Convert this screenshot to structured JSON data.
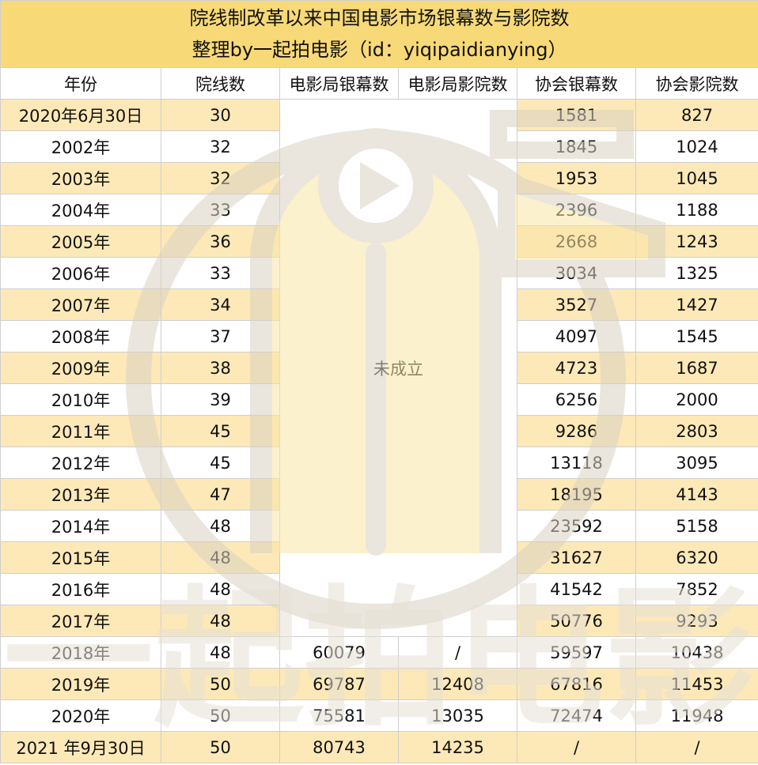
{
  "title": {
    "line1": "院线制改革以来中国电影市场银幕数与影院数",
    "line2": "整理by一起拍电影（id：yiqipaidianying）"
  },
  "columns": [
    "年份",
    "院线数",
    "电影局银幕数",
    "电影局影院数",
    "协会银幕数",
    "协会影院数"
  ],
  "merged_note": "未成立",
  "rows": [
    {
      "year": "2020年6月30日",
      "chains": "30",
      "bureau_screens": "",
      "bureau_cinemas": "",
      "assoc_screens": "1581",
      "assoc_cinemas": "827"
    },
    {
      "year": "2002年",
      "chains": "32",
      "bureau_screens": "",
      "bureau_cinemas": "",
      "assoc_screens": "1845",
      "assoc_cinemas": "1024"
    },
    {
      "year": "2003年",
      "chains": "32",
      "bureau_screens": "",
      "bureau_cinemas": "",
      "assoc_screens": "1953",
      "assoc_cinemas": "1045"
    },
    {
      "year": "2004年",
      "chains": "33",
      "bureau_screens": "",
      "bureau_cinemas": "",
      "assoc_screens": "2396",
      "assoc_cinemas": "1188"
    },
    {
      "year": "2005年",
      "chains": "36",
      "bureau_screens": "",
      "bureau_cinemas": "",
      "assoc_screens": "2668",
      "assoc_cinemas": "1243"
    },
    {
      "year": "2006年",
      "chains": "33",
      "bureau_screens": "",
      "bureau_cinemas": "",
      "assoc_screens": "3034",
      "assoc_cinemas": "1325"
    },
    {
      "year": "2007年",
      "chains": "34",
      "bureau_screens": "",
      "bureau_cinemas": "",
      "assoc_screens": "3527",
      "assoc_cinemas": "1427"
    },
    {
      "year": "2008年",
      "chains": "37",
      "bureau_screens": "",
      "bureau_cinemas": "",
      "assoc_screens": "4097",
      "assoc_cinemas": "1545"
    },
    {
      "year": "2009年",
      "chains": "38",
      "bureau_screens": "",
      "bureau_cinemas": "",
      "assoc_screens": "4723",
      "assoc_cinemas": "1687"
    },
    {
      "year": "2010年",
      "chains": "39",
      "bureau_screens": "",
      "bureau_cinemas": "",
      "assoc_screens": "6256",
      "assoc_cinemas": "2000"
    },
    {
      "year": "2011年",
      "chains": "45",
      "bureau_screens": "",
      "bureau_cinemas": "",
      "assoc_screens": "9286",
      "assoc_cinemas": "2803"
    },
    {
      "year": "2012年",
      "chains": "45",
      "bureau_screens": "",
      "bureau_cinemas": "",
      "assoc_screens": "13118",
      "assoc_cinemas": "3095"
    },
    {
      "year": "2013年",
      "chains": "47",
      "bureau_screens": "",
      "bureau_cinemas": "",
      "assoc_screens": "18195",
      "assoc_cinemas": "4143"
    },
    {
      "year": "2014年",
      "chains": "48",
      "bureau_screens": "",
      "bureau_cinemas": "",
      "assoc_screens": "23592",
      "assoc_cinemas": "5158"
    },
    {
      "year": "2015年",
      "chains": "48",
      "bureau_screens": "",
      "bureau_cinemas": "",
      "assoc_screens": "31627",
      "assoc_cinemas": "6320"
    },
    {
      "year": "2016年",
      "chains": "48",
      "bureau_screens": "",
      "bureau_cinemas": "",
      "assoc_screens": "41542",
      "assoc_cinemas": "7852"
    },
    {
      "year": "2017年",
      "chains": "48",
      "bureau_screens": "",
      "bureau_cinemas": "",
      "assoc_screens": "50776",
      "assoc_cinemas": "9293"
    },
    {
      "year": "2018年",
      "chains": "48",
      "bureau_screens": "60079",
      "bureau_cinemas": "/",
      "assoc_screens": "59597",
      "assoc_cinemas": "10438"
    },
    {
      "year": "2019年",
      "chains": "50",
      "bureau_screens": "69787",
      "bureau_cinemas": "12408",
      "assoc_screens": "67816",
      "assoc_cinemas": "11453"
    },
    {
      "year": "2020年",
      "chains": "50",
      "bureau_screens": "75581",
      "bureau_cinemas": "13035",
      "assoc_screens": "72474",
      "assoc_cinemas": "11948"
    },
    {
      "year": "2021 年9月30日",
      "chains": "50",
      "bureau_screens": "80743",
      "bureau_cinemas": "14235",
      "assoc_screens": "/",
      "assoc_cinemas": "/"
    }
  ],
  "watermark_text": "一起拍电影",
  "colors": {
    "title_bg": "#f8d977",
    "highlight_bg": "#fde9b8",
    "grid_line": "#cfcfcf",
    "watermark": "#e6e1d6",
    "logo_yellow": "#fbe6a6"
  }
}
